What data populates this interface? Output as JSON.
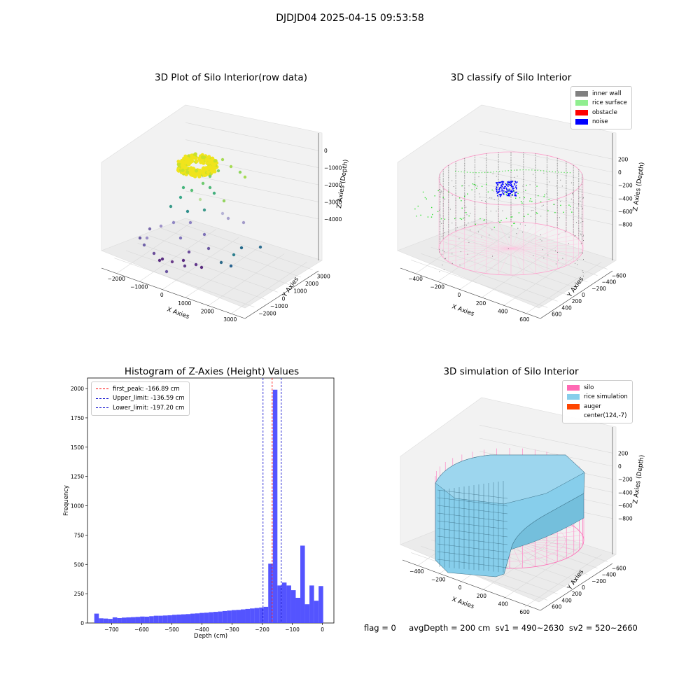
{
  "suptitle": "DJDJD04 2025-04-15 09:53:58",
  "footer": "flag = 0     avgDepth = 200 cm  sv1 = 490~2630  sv2 = 520~2660",
  "colors": {
    "inner_wall": "#808080",
    "rice_surface": "#90ee90",
    "obstacle": "#ff0000",
    "noise": "#0000ff",
    "silo": "#ff69b4",
    "rice_simulation": "#87ceeb",
    "auger": "#ff4500",
    "hist_bar": "#4b4bff",
    "first_peak": "#ff0000",
    "limit": "#0000cc"
  },
  "chart_data": [
    {
      "type": "scatter3d",
      "title": "3D Plot of Silo Interior(row data)",
      "xlabel": "X Axies",
      "ylabel": "Y Axies",
      "zlabel": "Z Axies (Depth)",
      "xticks": [
        "−2000",
        "−1000",
        "0",
        "1000",
        "2000",
        "3000"
      ],
      "yticks": [
        "−2000",
        "−1000",
        "0",
        "1000",
        "2000",
        "3000"
      ],
      "zticks": [
        "0",
        "−1000",
        "−2000",
        "−3000",
        "−4000"
      ],
      "grid": true
    },
    {
      "type": "scatter3d",
      "title": "3D classify of Silo Interior",
      "xlabel": "X Axies",
      "ylabel": "Y Axies",
      "zlabel": "Z Axies (Depth)",
      "xticks": [
        "−400",
        "−200",
        "0",
        "200",
        "400",
        "600"
      ],
      "yticks": [
        "600",
        "400",
        "200",
        "0",
        "−200",
        "−400",
        "−600"
      ],
      "zticks": [
        "200",
        "0",
        "−200",
        "−400",
        "−600",
        "−800"
      ],
      "legend": [
        "inner wall",
        "rice surface",
        "obstacle",
        "noise"
      ],
      "legend_position": "top-right",
      "grid": true
    },
    {
      "type": "bar",
      "title": "Histogram of Z-Axies (Height) Values",
      "xlabel": "Depth (cm)",
      "ylabel": "Frequency",
      "xlim": [
        -780,
        38
      ],
      "ylim": [
        0,
        2090
      ],
      "xticks": [
        -700,
        -600,
        -500,
        -400,
        -300,
        -200,
        -100,
        0
      ],
      "xtick_labels": [
        "−700",
        "−600",
        "−500",
        "−400",
        "−300",
        "−200",
        "−100",
        "0"
      ],
      "yticks": [
        0,
        250,
        500,
        750,
        1000,
        1250,
        1500,
        1750,
        2000
      ],
      "bin_start": -757.5,
      "bin_width": 15.2,
      "values": [
        80,
        40,
        38,
        35,
        48,
        42,
        46,
        48,
        50,
        52,
        55,
        54,
        58,
        62,
        62,
        64,
        66,
        70,
        72,
        74,
        76,
        80,
        82,
        86,
        88,
        92,
        95,
        98,
        102,
        106,
        110,
        112,
        116,
        120,
        124,
        128,
        132,
        138,
        506,
        1990,
        320,
        345,
        320,
        280,
        215,
        660,
        160,
        320,
        190,
        315
      ],
      "lines": [
        {
          "label": "first_peak: -166.89 cm",
          "x": -166.89,
          "color": "#ff0000"
        },
        {
          "label": "Upper_limit: -136.59 cm",
          "x": -136.59,
          "color": "#0000cc"
        },
        {
          "label": "Lower_limit: -197.20 cm",
          "x": -197.2,
          "color": "#0000cc"
        }
      ],
      "legend_position": "top-left",
      "grid": false
    },
    {
      "type": "surface3d",
      "title": "3D simulation of Silo Interior",
      "xlabel": "X Axies",
      "ylabel": "Y Axies",
      "zlabel": "Z Axies (Depth)",
      "xticks": [
        "−400",
        "−200",
        "0",
        "200",
        "400",
        "600"
      ],
      "yticks": [
        "600",
        "400",
        "200",
        "0",
        "−200",
        "−400",
        "−600"
      ],
      "zticks": [
        "200",
        "0",
        "−200",
        "−400",
        "−600",
        "−800"
      ],
      "legend": [
        "silo",
        "rice simulation",
        "auger",
        "center(124,-7)"
      ],
      "legend_position": "top-right",
      "grid": true
    }
  ]
}
